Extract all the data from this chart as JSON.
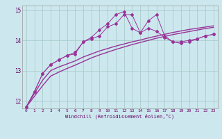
{
  "xlabel": "Windchill (Refroidissement éolien,°C)",
  "bg_color": "#cce8ee",
  "grid_color": "#aacccc",
  "line_color": "#993399",
  "x_values": [
    0,
    1,
    2,
    3,
    4,
    5,
    6,
    7,
    8,
    9,
    10,
    11,
    12,
    13,
    14,
    15,
    16,
    17,
    18,
    19,
    20,
    21,
    22,
    23
  ],
  "y_line1": [
    11.8,
    12.3,
    12.9,
    13.2,
    13.35,
    13.5,
    13.6,
    13.95,
    14.05,
    14.15,
    14.45,
    14.55,
    14.85,
    14.85,
    14.25,
    14.4,
    14.3,
    14.1,
    13.95,
    13.95,
    14.0,
    14.05,
    14.15,
    14.2
  ],
  "y_line2": [
    11.8,
    12.3,
    12.9,
    13.2,
    13.35,
    13.5,
    13.55,
    13.95,
    14.1,
    14.35,
    14.55,
    14.85,
    14.95,
    14.4,
    14.25,
    14.65,
    14.85,
    14.15,
    13.95,
    13.9,
    13.95,
    14.05,
    14.15,
    14.2
  ],
  "y_line3": [
    11.8,
    12.25,
    12.68,
    13.0,
    13.12,
    13.22,
    13.32,
    13.45,
    13.55,
    13.65,
    13.73,
    13.81,
    13.88,
    13.95,
    14.01,
    14.08,
    14.14,
    14.2,
    14.26,
    14.31,
    14.36,
    14.4,
    14.44,
    14.48
  ],
  "y_line4": [
    11.8,
    12.15,
    12.5,
    12.82,
    12.95,
    13.07,
    13.18,
    13.3,
    13.42,
    13.52,
    13.61,
    13.7,
    13.78,
    13.86,
    13.93,
    14.0,
    14.07,
    14.13,
    14.19,
    14.24,
    14.29,
    14.34,
    14.39,
    14.43
  ],
  "ylim": [
    11.75,
    15.15
  ],
  "yticks": [
    12,
    13,
    14,
    15
  ],
  "xlim": [
    -0.5,
    23.5
  ],
  "xticks": [
    0,
    1,
    2,
    3,
    4,
    5,
    6,
    7,
    8,
    9,
    10,
    11,
    12,
    13,
    14,
    15,
    16,
    17,
    18,
    19,
    20,
    21,
    22,
    23
  ]
}
